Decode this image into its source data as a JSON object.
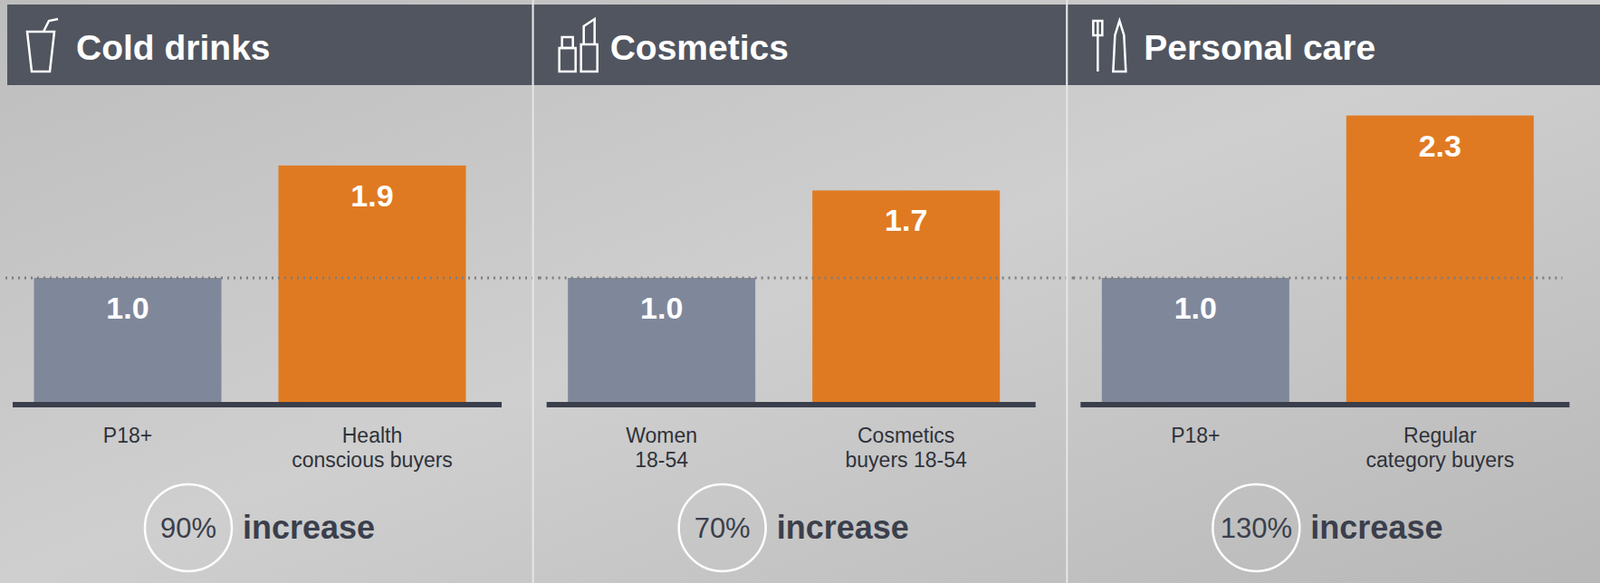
{
  "chart_data": [
    {
      "type": "bar",
      "title": "Cold drinks",
      "categories": [
        "P18+",
        "Health conscious buyers"
      ],
      "values": [
        1.0,
        1.9
      ],
      "value_labels": [
        "1.0",
        "1.9"
      ],
      "colors": [
        "#7f889a",
        "#e07a22"
      ],
      "ylim": [
        0,
        2.5
      ],
      "tick_labels": false,
      "data_labels": true,
      "annotation": {
        "value": 90,
        "label": "90%",
        "text": "increase"
      }
    },
    {
      "type": "bar",
      "title": "Cosmetics",
      "categories": [
        "Women 18-54",
        "Cosmetics buyers 18-54"
      ],
      "values": [
        1.0,
        1.7
      ],
      "value_labels": [
        "1.0",
        "1.7"
      ],
      "colors": [
        "#7f889a",
        "#e07a22"
      ],
      "ylim": [
        0,
        2.5
      ],
      "tick_labels": false,
      "data_labels": true,
      "annotation": {
        "value": 70,
        "label": "70%",
        "text": "increase"
      }
    },
    {
      "type": "bar",
      "title": "Personal care",
      "categories": [
        "P18+",
        "Regular category buyers"
      ],
      "values": [
        1.0,
        2.3
      ],
      "value_labels": [
        "1.0",
        "2.3"
      ],
      "colors": [
        "#7f889a",
        "#e07a22"
      ],
      "ylim": [
        0,
        2.5
      ],
      "tick_labels": false,
      "data_labels": true,
      "annotation": {
        "value": 130,
        "label": "130%",
        "text": "increase"
      }
    }
  ]
}
